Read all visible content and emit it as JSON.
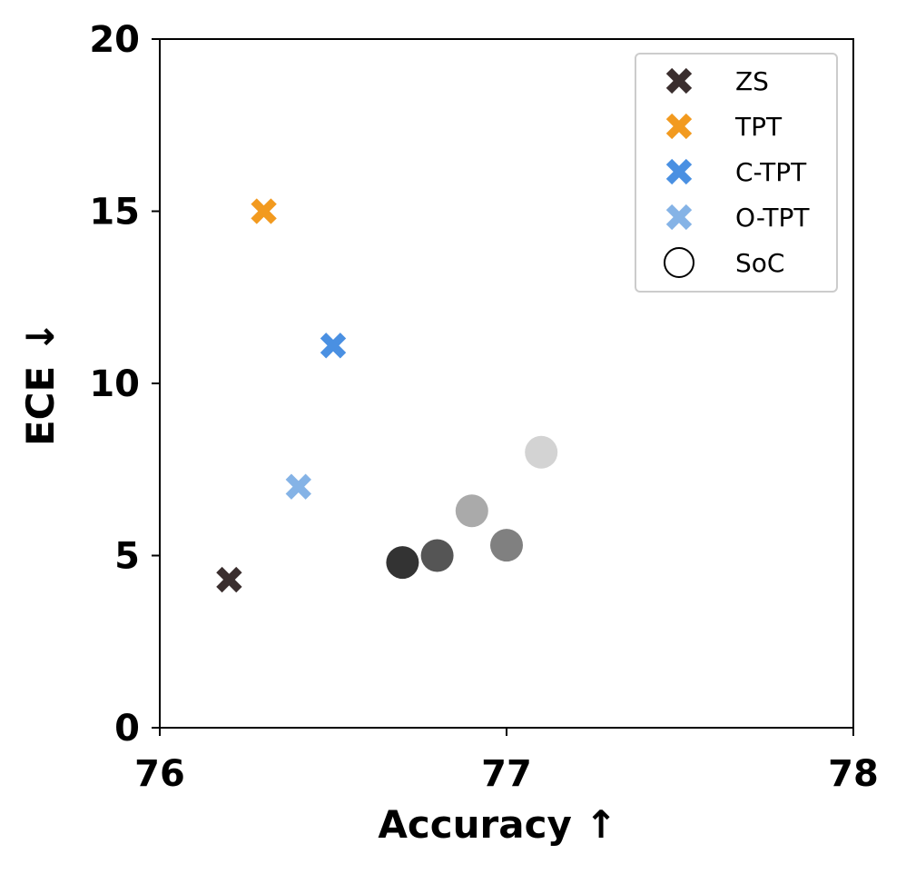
{
  "chart_data": {
    "type": "scatter",
    "title": "",
    "xlabel": "Accuracy  ↑",
    "ylabel": "ECE  ↓",
    "xlim": [
      76,
      78
    ],
    "ylim": [
      0,
      20
    ],
    "xticks": [
      "76",
      "77",
      "78"
    ],
    "yticks": [
      "0",
      "5",
      "10",
      "15",
      "20"
    ],
    "grid": false,
    "legend_position": "top-right",
    "series": [
      {
        "name": "ZS",
        "marker": "x",
        "color": "#3a2e2e",
        "points": [
          {
            "x": 76.2,
            "y": 4.3
          }
        ]
      },
      {
        "name": "TPT",
        "marker": "x",
        "color": "#f29a1f",
        "points": [
          {
            "x": 76.3,
            "y": 15.0
          }
        ]
      },
      {
        "name": "C-TPT",
        "marker": "x",
        "color": "#4a90e2",
        "points": [
          {
            "x": 76.5,
            "y": 11.1
          }
        ]
      },
      {
        "name": "O-TPT",
        "marker": "x",
        "color": "#85b3e6",
        "points": [
          {
            "x": 76.4,
            "y": 7.0
          }
        ]
      },
      {
        "name": "SoC",
        "marker": "circle",
        "color": "#000000",
        "points": [
          {
            "x": 76.7,
            "y": 4.8,
            "color": "#333333"
          },
          {
            "x": 76.8,
            "y": 5.0,
            "color": "#555555"
          },
          {
            "x": 76.9,
            "y": 6.3,
            "color": "#aaaaaa"
          },
          {
            "x": 77.0,
            "y": 5.3,
            "color": "#808080"
          },
          {
            "x": 77.1,
            "y": 8.0,
            "color": "#d3d3d3"
          }
        ]
      }
    ]
  }
}
